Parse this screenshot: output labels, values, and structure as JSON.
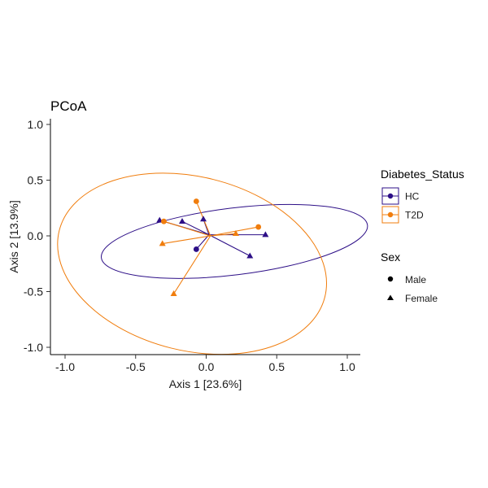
{
  "chart_data": {
    "type": "scatter",
    "title": "PCoA",
    "xlabel": "Axis 1 [23.6%]",
    "ylabel": "Axis 2 [13.9%]",
    "xlim": [
      -1.1,
      1.1
    ],
    "ylim": [
      -1.07,
      1.05
    ],
    "x_ticks": [
      -1.0,
      -0.5,
      0.0,
      0.5,
      1.0
    ],
    "x_tick_labels": [
      "-1.0",
      "-0.5",
      "0.0",
      "0.5",
      "1.0"
    ],
    "y_ticks": [
      -1.0,
      -0.5,
      0.0,
      0.5,
      1.0
    ],
    "y_tick_labels": [
      "-1.0",
      "-0.5",
      "0.0",
      "0.5",
      "1.0"
    ],
    "grid": false,
    "legend_position": "right",
    "colors": {
      "HC": "#2d0f87",
      "T2D": "#f07d0d"
    },
    "series": [
      {
        "name": "HC",
        "color": "#2d0f87",
        "centroid": [
          0.02,
          0.01
        ],
        "ellipse": {
          "center": [
            0.2,
            -0.05
          ],
          "semi_axes": [
            0.95,
            0.3
          ],
          "angle_deg": -7
        },
        "points": [
          {
            "x": -0.33,
            "y": 0.14,
            "sex": "Female"
          },
          {
            "x": -0.17,
            "y": 0.13,
            "sex": "Female"
          },
          {
            "x": -0.02,
            "y": 0.15,
            "sex": "Female"
          },
          {
            "x": -0.07,
            "y": -0.12,
            "sex": "Male"
          },
          {
            "x": 0.31,
            "y": -0.18,
            "sex": "Female"
          },
          {
            "x": 0.42,
            "y": 0.01,
            "sex": "Female"
          }
        ]
      },
      {
        "name": "T2D",
        "color": "#f07d0d",
        "centroid": [
          0.03,
          0.0
        ],
        "ellipse": {
          "center": [
            -0.1,
            -0.25
          ],
          "semi_axes": [
            0.97,
            0.78
          ],
          "angle_deg": 14
        },
        "points": [
          {
            "x": -0.07,
            "y": 0.31,
            "sex": "Male"
          },
          {
            "x": -0.3,
            "y": 0.13,
            "sex": "Male"
          },
          {
            "x": 0.37,
            "y": 0.08,
            "sex": "Male"
          },
          {
            "x": -0.31,
            "y": -0.07,
            "sex": "Female"
          },
          {
            "x": 0.21,
            "y": 0.02,
            "sex": "Female"
          },
          {
            "x": -0.23,
            "y": -0.52,
            "sex": "Female"
          }
        ]
      }
    ],
    "legends": [
      {
        "title": "Diabetes_Status",
        "items": [
          "HC",
          "T2D"
        ]
      },
      {
        "title": "Sex",
        "items": [
          "Male",
          "Female"
        ]
      }
    ]
  }
}
